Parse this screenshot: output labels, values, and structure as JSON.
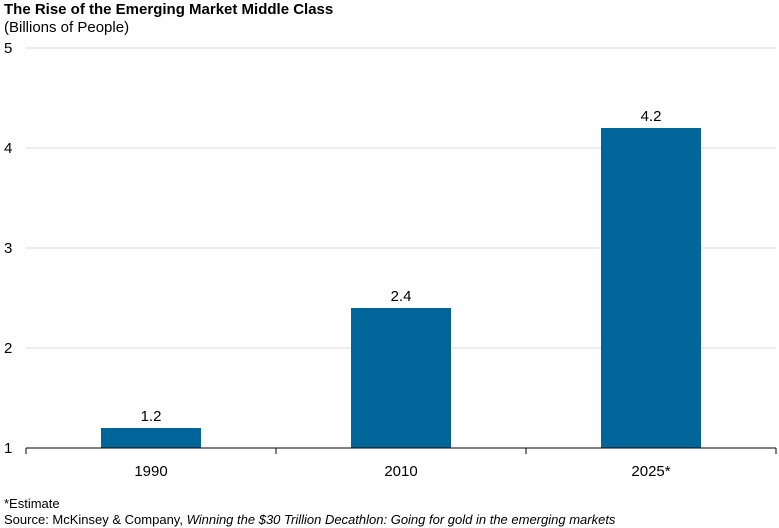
{
  "chart_data": {
    "type": "bar",
    "title": "The Rise of the Emerging Market Middle Class",
    "subtitle": "(Billions of People)",
    "categories": [
      "1990",
      "2010",
      "2025*"
    ],
    "values": [
      1.2,
      2.4,
      4.2
    ],
    "data_labels": [
      "1.2",
      "2.4",
      "4.2"
    ],
    "ylim": [
      1,
      5
    ],
    "yticks": [
      "1",
      "2",
      "3",
      "4",
      "5"
    ],
    "grid": true,
    "bar_color": "#006699",
    "grid_color": "#d9d9d9",
    "xlabel": "",
    "ylabel": ""
  },
  "footnote": "*Estimate",
  "source": {
    "prefix": "Source: McKinsey & Company, ",
    "title": "Winning the $30 Trillion Decathlon: Going for gold in the emerging markets"
  }
}
